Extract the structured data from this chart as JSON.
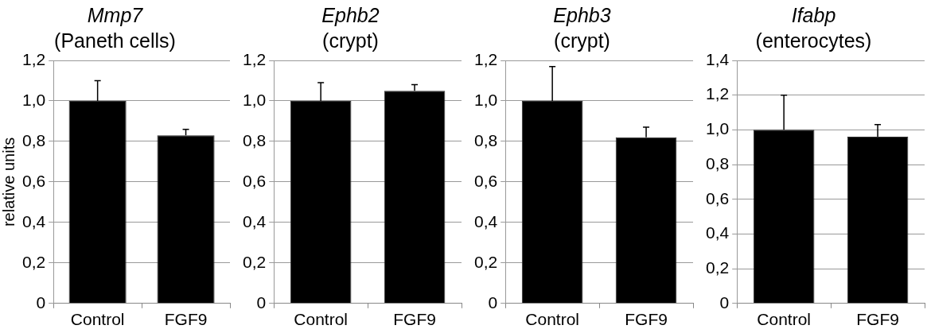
{
  "chart_data": [
    {
      "type": "bar",
      "title": "Mmp7",
      "subtitle": "(Paneth cells)",
      "ylabel": "relative units",
      "categories": [
        "Control",
        "FGF9"
      ],
      "values": [
        1.0,
        0.83
      ],
      "errors": [
        [
          1.0,
          1.1
        ],
        [
          0.83,
          0.86
        ]
      ],
      "color": "#000000",
      "ylim": [
        0,
        1.2
      ],
      "yticks": [
        {
          "value": 0,
          "label": "0"
        },
        {
          "value": 0.2,
          "label": "0,2"
        },
        {
          "value": 0.4,
          "label": "0,4"
        },
        {
          "value": 0.6,
          "label": "0,6"
        },
        {
          "value": 0.8,
          "label": "0,8"
        },
        {
          "value": 1.0,
          "label": "1,0"
        },
        {
          "value": 1.2,
          "label": "1,2"
        }
      ],
      "grid": "y",
      "legend": false
    },
    {
      "type": "bar",
      "title": "Ephb2",
      "subtitle": "(crypt)",
      "categories": [
        "Control",
        "FGF9"
      ],
      "values": [
        1.0,
        1.05
      ],
      "errors": [
        [
          1.0,
          1.09
        ],
        [
          1.05,
          1.08
        ]
      ],
      "color": "#000000",
      "ylim": [
        0,
        1.2
      ],
      "yticks": [
        {
          "value": 0,
          "label": "0"
        },
        {
          "value": 0.2,
          "label": "0,2"
        },
        {
          "value": 0.4,
          "label": "0,4"
        },
        {
          "value": 0.6,
          "label": "0,6"
        },
        {
          "value": 0.8,
          "label": "0,8"
        },
        {
          "value": 1.0,
          "label": "1,0"
        },
        {
          "value": 1.2,
          "label": "1,2"
        }
      ],
      "grid": "y",
      "legend": false
    },
    {
      "type": "bar",
      "title": "Ephb3",
      "subtitle": "(crypt)",
      "categories": [
        "Control",
        "FGF9"
      ],
      "values": [
        1.0,
        0.82
      ],
      "errors": [
        [
          1.0,
          1.17
        ],
        [
          0.82,
          0.87
        ]
      ],
      "color": "#000000",
      "ylim": [
        0,
        1.2
      ],
      "yticks": [
        {
          "value": 0,
          "label": "0"
        },
        {
          "value": 0.2,
          "label": "0,2"
        },
        {
          "value": 0.4,
          "label": "0,4"
        },
        {
          "value": 0.6,
          "label": "0,6"
        },
        {
          "value": 0.8,
          "label": "0,8"
        },
        {
          "value": 1.0,
          "label": "1,0"
        },
        {
          "value": 1.2,
          "label": "1,2"
        }
      ],
      "grid": "y",
      "legend": false
    },
    {
      "type": "bar",
      "title": "Ifabp",
      "subtitle": "(enterocytes)",
      "categories": [
        "Control",
        "FGF9"
      ],
      "values": [
        1.0,
        0.96
      ],
      "errors": [
        [
          1.0,
          1.2
        ],
        [
          0.96,
          1.03
        ]
      ],
      "color": "#000000",
      "ylim": [
        0,
        1.4
      ],
      "yticks": [
        {
          "value": 0,
          "label": "0"
        },
        {
          "value": 0.2,
          "label": "0,2"
        },
        {
          "value": 0.4,
          "label": "0,4"
        },
        {
          "value": 0.6,
          "label": "0,6"
        },
        {
          "value": 0.8,
          "label": "0,8"
        },
        {
          "value": 1.0,
          "label": "1,0"
        },
        {
          "value": 1.2,
          "label": "1,2"
        },
        {
          "value": 1.4,
          "label": "1,4"
        }
      ],
      "grid": "y",
      "legend": false
    }
  ]
}
